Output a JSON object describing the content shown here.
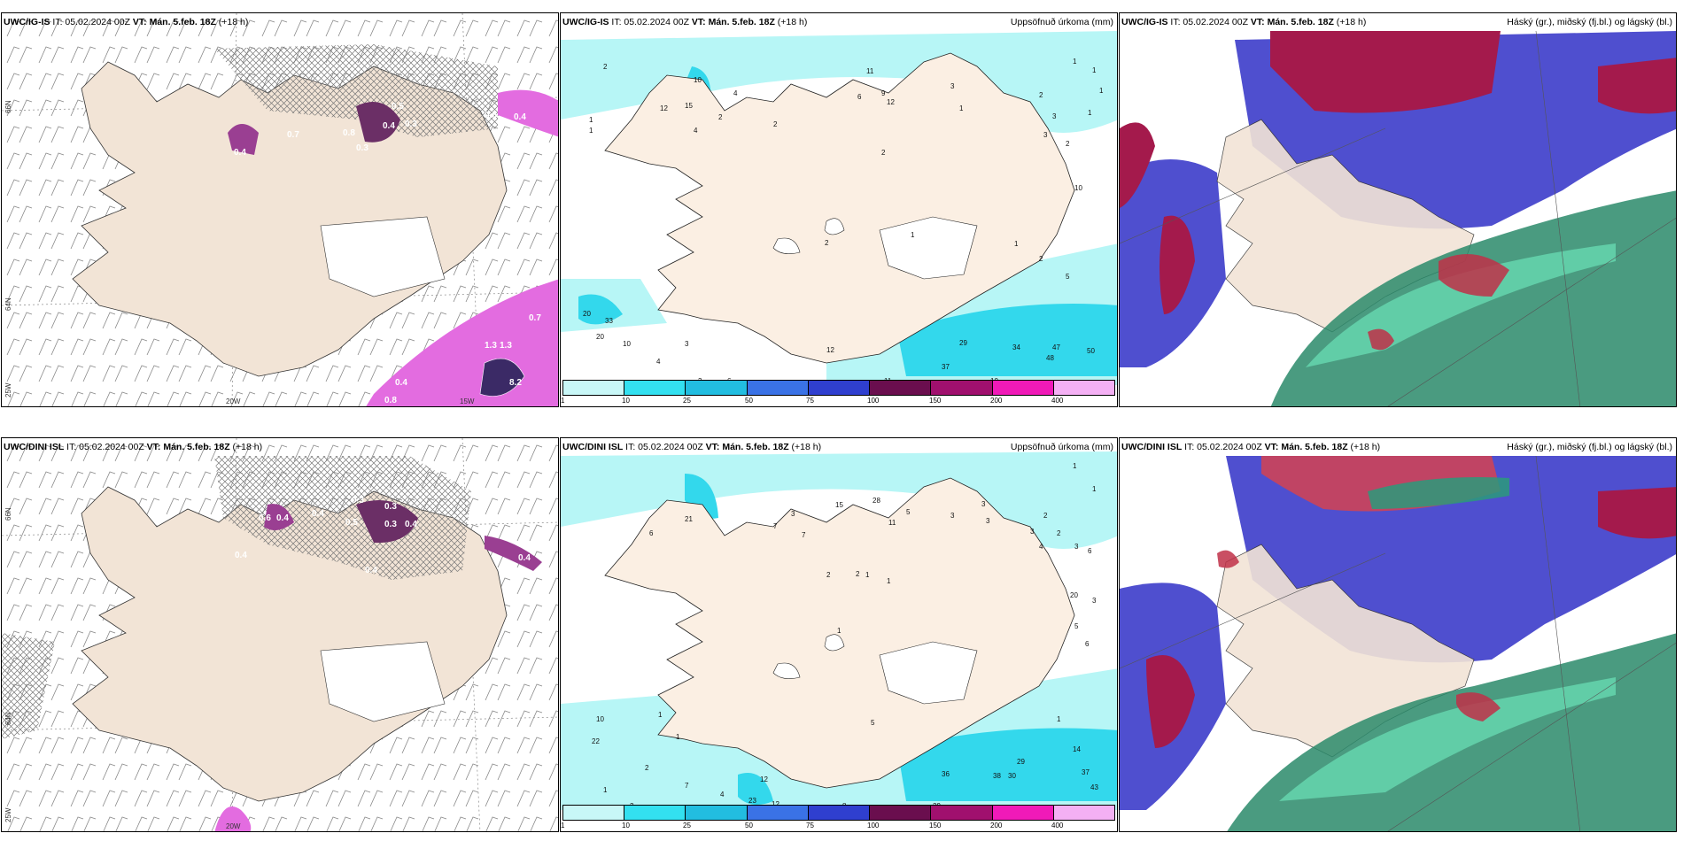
{
  "rows": [
    {
      "model": "UWC/IG-IS",
      "it_label": "IT: 05.02.2024 00Z",
      "vt_label": "VT: Mán. 5.feb. 18Z",
      "lead": "(+18 h)",
      "wind_values": [
        "0.5",
        "0.4",
        "0.3",
        "0.8",
        "0.3",
        "0.7",
        "0.4",
        "0.4",
        "0.6",
        "1.3",
        "1.3",
        "0.7",
        "0.4",
        "0.8",
        "8.2"
      ],
      "precip_values": [
        "2",
        "1",
        "1",
        "10",
        "12",
        "15",
        "4",
        "11",
        "9",
        "12",
        "6",
        "3",
        "4",
        "2",
        "2",
        "1",
        "2",
        "3",
        "3",
        "2",
        "2",
        "10",
        "1",
        "2",
        "2",
        "1",
        "5",
        "20",
        "33",
        "20",
        "10",
        "3",
        "4",
        "5",
        "3",
        "6",
        "12",
        "10",
        "11",
        "29",
        "34",
        "47",
        "48",
        "50",
        "37",
        "10",
        "1",
        "1",
        "1",
        "1"
      ]
    },
    {
      "model": "UWC/DINI ISL",
      "it_label": "IT: 05.02.2024 00Z",
      "vt_label": "VT: Mán. 5.feb. 18Z",
      "lead": "(+18 h)",
      "wind_values": [
        "0.6",
        "0.4",
        "0.4",
        "0.5",
        "0.3",
        "0.4",
        "0.3",
        "0.3",
        "0.4",
        "0.4",
        "0.4"
      ],
      "precip_values": [
        "1",
        "1",
        "28",
        "15",
        "5",
        "3",
        "21",
        "6",
        "3",
        "7",
        "11",
        "3",
        "3",
        "2",
        "2",
        "3",
        "7",
        "4",
        "3",
        "6",
        "20",
        "3",
        "5",
        "6",
        "2",
        "2",
        "1",
        "1",
        "1",
        "10",
        "22",
        "1",
        "1",
        "1",
        "2",
        "2",
        "7",
        "4",
        "12",
        "23",
        "12",
        "8",
        "5",
        "14",
        "36",
        "38",
        "30",
        "29",
        "29",
        "37",
        "43",
        "1"
      ]
    }
  ],
  "precip_panel": {
    "right_title": "Uppsöfnuð úrkoma (mm)",
    "colorbar": {
      "labels": [
        "1",
        "10",
        "25",
        "50",
        "75",
        "100",
        "150",
        "200",
        "400"
      ],
      "colors": [
        "#c8f7f7",
        "#33e0f0",
        "#22bde0",
        "#3a72e6",
        "#2f3fcf",
        "#6a0e4e",
        "#a0106e",
        "#f01ab8",
        "#f4b0f4"
      ]
    }
  },
  "cloud_panel": {
    "right_title": "Háský (gr.), miðský (fj.bl.) og lágský (bl.)"
  },
  "axis_labels": {
    "lat_66": "66N",
    "lat_64": "64N",
    "lon_25": "25W",
    "lon_20": "20W",
    "lon_15": "15W"
  },
  "colors": {
    "land": "#f2e4d6",
    "precip_light": "#b7f6f6",
    "precip_mid": "#33d8ec",
    "wind_fill": "#e36ce0",
    "wind_dark": "#6b2f66",
    "cloud_high": "#a41a4c",
    "cloud_mid": "#4f4fcf",
    "cloud_low": "#1aa07a"
  }
}
